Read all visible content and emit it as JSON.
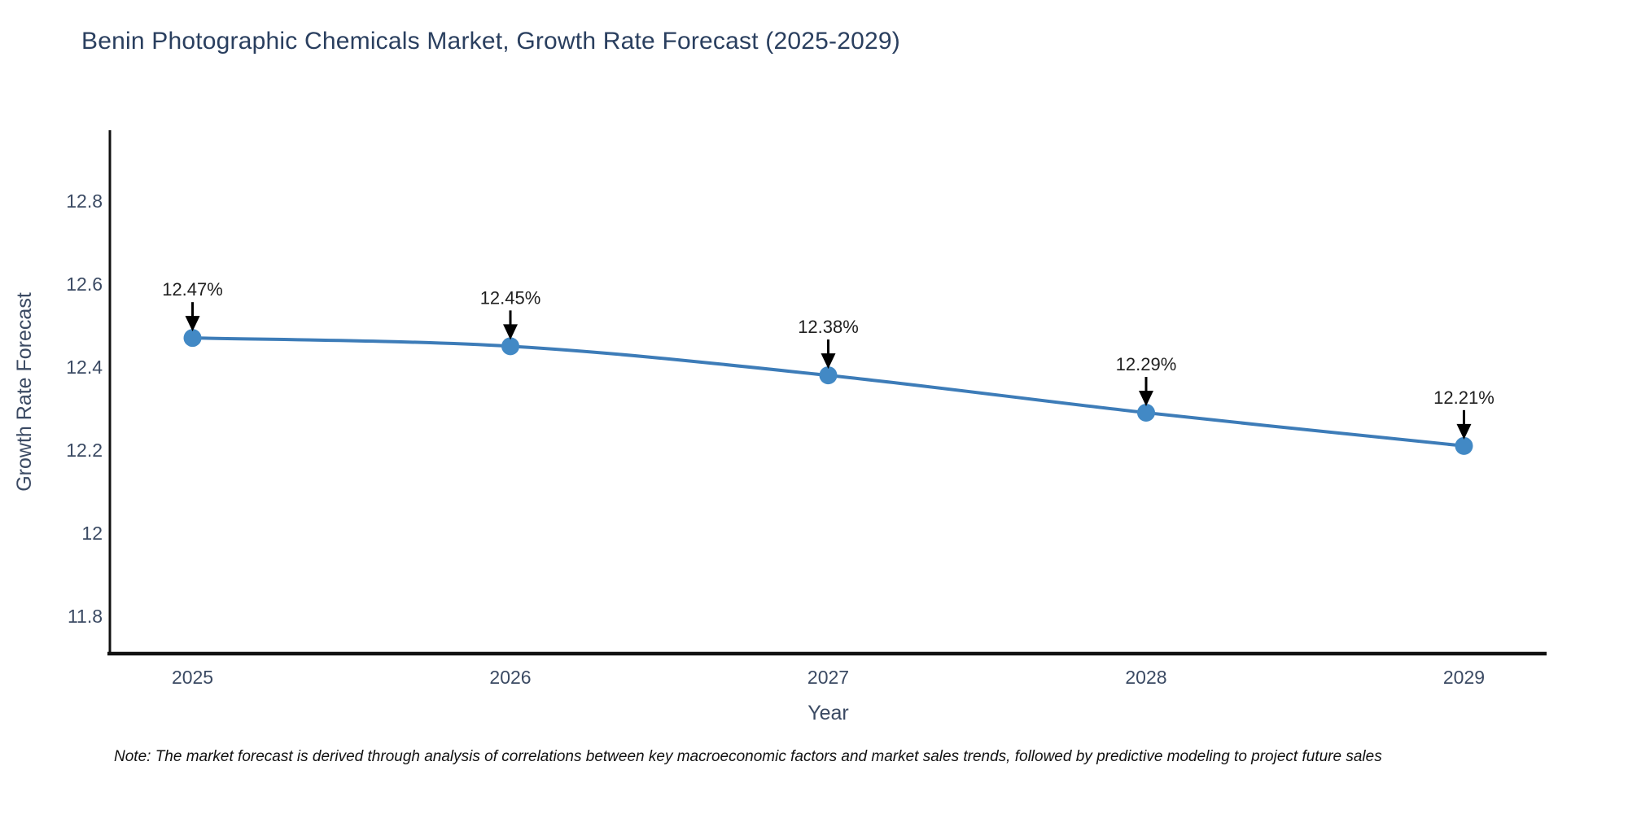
{
  "header": {
    "title": "Benin Photographic Chemicals Market, Growth Rate Forecast (2025-2029)"
  },
  "footnote": {
    "text": "Note: The market forecast is derived through analysis of correlations between key macroeconomic factors and market sales trends, followed by predictive modeling to project future sales"
  },
  "colors": {
    "title_text": "#2a3f5f",
    "tick_text": "#3b4a63",
    "axis_line": "#111111",
    "line": "#3d7cb8",
    "marker": "#4289c5",
    "annotation_text": "#1f1f1f",
    "arrow": "#000000",
    "background": "#ffffff"
  },
  "chart_data": {
    "type": "line",
    "title": "Benin Photographic Chemicals Market, Growth Rate Forecast (2025-2029)",
    "xlabel": "Year",
    "ylabel": "Growth Rate Forecast",
    "x": [
      2025,
      2026,
      2027,
      2028,
      2029
    ],
    "series": [
      {
        "name": "Growth Rate Forecast",
        "values": [
          12.47,
          12.45,
          12.38,
          12.29,
          12.21
        ],
        "point_labels": [
          "12.47%",
          "12.45%",
          "12.38%",
          "12.29%",
          "12.21%"
        ]
      }
    ],
    "xtick_labels": [
      "2025",
      "2026",
      "2027",
      "2028",
      "2029"
    ],
    "yticks": [
      11.8,
      12.0,
      12.2,
      12.4,
      12.6,
      12.8
    ],
    "ytick_labels": [
      "11.8",
      "12",
      "12.2",
      "12.4",
      "12.6",
      "12.8"
    ],
    "xlim": [
      2024.74,
      2029.26
    ],
    "ylim": [
      11.71,
      12.97
    ],
    "grid": false,
    "legend": "none",
    "annotations": "value labels with downward arrows above each data point"
  }
}
